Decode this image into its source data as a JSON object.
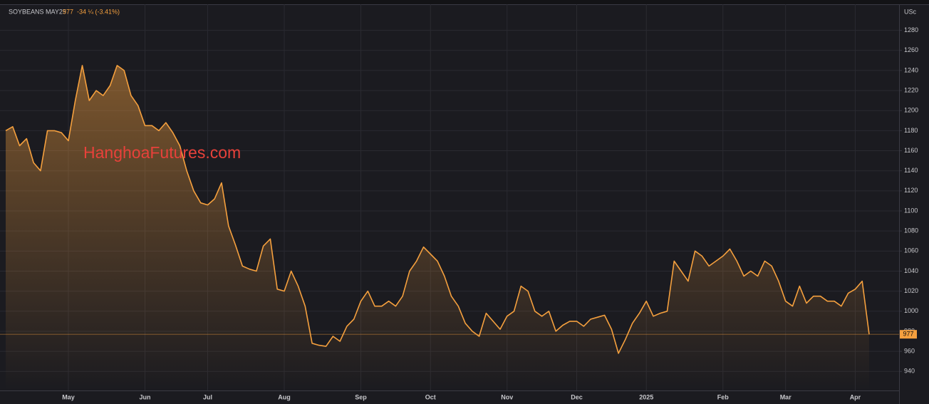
{
  "chart_data": {
    "type": "area-line",
    "title": "SOYBEANS MAY25",
    "subtitle": "-34 ¼ (-3.41%)",
    "y_unit": "USc",
    "watermark": "HanghoaFutures.com",
    "color": "#f5a03e",
    "grid": true,
    "ylim": [
      921,
      1306
    ],
    "yticks": [
      940,
      960,
      980,
      1000,
      1020,
      1040,
      1060,
      1080,
      1100,
      1120,
      1140,
      1160,
      1180,
      1200,
      1220,
      1240,
      1260,
      1280
    ],
    "categories": [
      null,
      null,
      null,
      null,
      null,
      null,
      null,
      null,
      null,
      "May",
      null,
      null,
      null,
      null,
      null,
      null,
      null,
      null,
      null,
      null,
      "Jun",
      null,
      null,
      null,
      null,
      null,
      null,
      null,
      null,
      "Jul",
      null,
      null,
      null,
      null,
      null,
      null,
      null,
      null,
      null,
      null,
      "Aug",
      null,
      null,
      null,
      null,
      null,
      null,
      null,
      null,
      null,
      null,
      "Sep",
      null,
      null,
      null,
      null,
      null,
      null,
      null,
      null,
      null,
      "Oct",
      null,
      null,
      null,
      null,
      null,
      null,
      null,
      null,
      null,
      null,
      "Nov",
      null,
      null,
      null,
      null,
      null,
      null,
      null,
      null,
      null,
      "Dec",
      null,
      null,
      null,
      null,
      null,
      null,
      null,
      null,
      null,
      "2025",
      null,
      null,
      null,
      null,
      null,
      null,
      null,
      null,
      null,
      null,
      "Feb",
      null,
      null,
      null,
      null,
      null,
      null,
      null,
      null,
      "Mar",
      null,
      null,
      null,
      null,
      null,
      null,
      null,
      null,
      null,
      "Apr",
      null,
      null
    ],
    "values": [
      1180,
      1184,
      1165,
      1172,
      1148,
      1140,
      1180,
      1180,
      1178,
      1170,
      1210,
      1245,
      1210,
      1220,
      1215,
      1225,
      1245,
      1240,
      1215,
      1205,
      1185,
      1185,
      1180,
      1188,
      1178,
      1165,
      1140,
      1120,
      1108,
      1106,
      1112,
      1128,
      1085,
      1066,
      1045,
      1042,
      1040,
      1065,
      1072,
      1022,
      1020,
      1040,
      1025,
      1005,
      968,
      966,
      965,
      975,
      970,
      985,
      992,
      1010,
      1020,
      1005,
      1005,
      1010,
      1005,
      1015,
      1040,
      1050,
      1064,
      1057,
      1050,
      1035,
      1015,
      1005,
      988,
      980,
      975,
      998,
      990,
      982,
      995,
      1000,
      1025,
      1020,
      1000,
      995,
      1000,
      980,
      986,
      990,
      990,
      985,
      992,
      994,
      996,
      982,
      958,
      972,
      988,
      998,
      1010,
      995,
      998,
      1000,
      1050,
      1040,
      1030,
      1060,
      1055,
      1045,
      1050,
      1055,
      1062,
      1050,
      1035,
      1040,
      1035,
      1050,
      1045,
      1030,
      1010,
      1005,
      1025,
      1008,
      1015,
      1015,
      1010,
      1010,
      1005,
      1018,
      1022,
      1030,
      977
    ]
  }
}
